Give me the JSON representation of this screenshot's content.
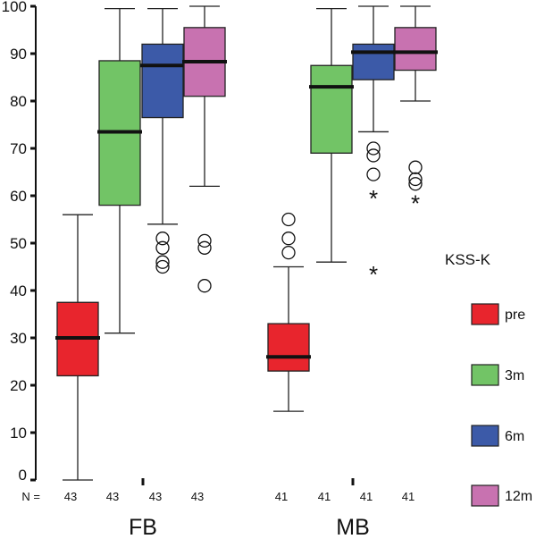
{
  "chart_data": {
    "type": "boxplot",
    "title": "",
    "ylim": [
      0,
      100
    ],
    "yticks": [
      0,
      10,
      20,
      30,
      40,
      50,
      60,
      70,
      80,
      90,
      100
    ],
    "n_label": "N =",
    "legend": {
      "title": "KSS-K",
      "placement": "right"
    },
    "series": [
      {
        "name": "pre",
        "color": "#e8252d"
      },
      {
        "name": "3m",
        "color": "#72c466"
      },
      {
        "name": "6m",
        "color": "#3c5aa8"
      },
      {
        "name": "12m",
        "color": "#c872b0"
      }
    ],
    "groups": [
      {
        "label": "FB",
        "boxes": [
          {
            "series": "pre",
            "n": "43",
            "min": 0,
            "q1": 22,
            "median": 30,
            "q3": 37.5,
            "max": 56,
            "outliers": [],
            "extremes": []
          },
          {
            "series": "3m",
            "n": "43",
            "min": 31,
            "q1": 58,
            "median": 73.5,
            "q3": 88.5,
            "max": 99.5,
            "outliers": [],
            "extremes": []
          },
          {
            "series": "6m",
            "n": "43",
            "min": 54,
            "q1": 76.5,
            "median": 87.5,
            "q3": 92,
            "max": 99.5,
            "outliers": [
              51,
              49,
              46,
              45
            ],
            "extremes": []
          },
          {
            "series": "12m",
            "n": "43",
            "min": 62,
            "q1": 81,
            "median": 88.3,
            "q3": 95.5,
            "max": 100,
            "outliers": [
              50.5,
              49,
              41
            ],
            "extremes": []
          }
        ]
      },
      {
        "label": "MB",
        "boxes": [
          {
            "series": "pre",
            "n": "41",
            "min": 14.5,
            "q1": 23,
            "median": 26,
            "q3": 33,
            "max": 45,
            "outliers": [
              55,
              51,
              48
            ],
            "extremes": []
          },
          {
            "series": "3m",
            "n": "41",
            "min": 46,
            "q1": 69,
            "median": 83,
            "q3": 87.5,
            "max": 99.5,
            "outliers": [],
            "extremes": []
          },
          {
            "series": "6m",
            "n": "41",
            "min": 73.5,
            "q1": 84.5,
            "median": 90.3,
            "q3": 92,
            "max": 100,
            "outliers": [
              70,
              68.5,
              64.5
            ],
            "extremes": [
              60,
              44
            ]
          },
          {
            "series": "12m",
            "n": "41",
            "min": 80,
            "q1": 86.5,
            "median": 90.3,
            "q3": 95.5,
            "max": 100,
            "outliers": [
              66,
              63.5,
              62.5
            ],
            "extremes": [
              59
            ]
          }
        ]
      }
    ]
  }
}
